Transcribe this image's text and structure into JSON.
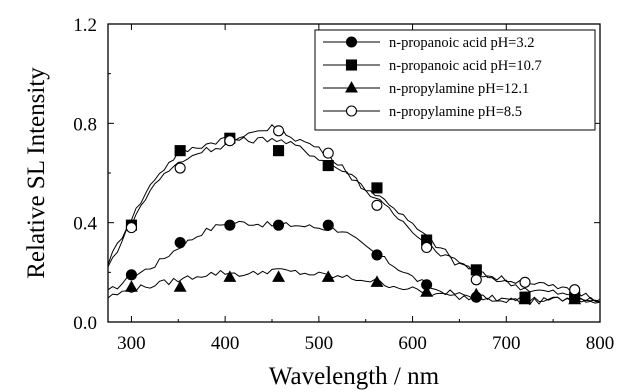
{
  "chart_data": {
    "type": "line",
    "xlabel": "Wavelength / nm",
    "ylabel": "Relative SL Intensity",
    "xlim": [
      275,
      800
    ],
    "ylim": [
      0.0,
      1.2
    ],
    "x_ticks": [
      300,
      400,
      500,
      600,
      700,
      800
    ],
    "y_ticks": [
      "0.0",
      "0.4",
      "0.8",
      "1.2"
    ],
    "grid": false,
    "legend_position": "top-right",
    "series": [
      {
        "name": "n-propanoic acid pH=3.2",
        "marker": "filled-circle",
        "curve": [
          [
            275,
            0.12
          ],
          [
            300,
            0.18
          ],
          [
            325,
            0.23
          ],
          [
            350,
            0.3
          ],
          [
            375,
            0.36
          ],
          [
            400,
            0.4
          ],
          [
            425,
            0.4
          ],
          [
            450,
            0.39
          ],
          [
            475,
            0.39
          ],
          [
            500,
            0.38
          ],
          [
            525,
            0.37
          ],
          [
            550,
            0.3
          ],
          [
            575,
            0.24
          ],
          [
            600,
            0.18
          ],
          [
            625,
            0.13
          ],
          [
            650,
            0.11
          ],
          [
            675,
            0.1
          ],
          [
            700,
            0.09
          ],
          [
            725,
            0.08
          ],
          [
            750,
            0.09
          ],
          [
            775,
            0.1
          ],
          [
            800,
            0.08
          ]
        ],
        "markers": [
          [
            300,
            0.19
          ],
          [
            352,
            0.32
          ],
          [
            405,
            0.39
          ],
          [
            457,
            0.39
          ],
          [
            510,
            0.39
          ],
          [
            562,
            0.27
          ],
          [
            615,
            0.15
          ],
          [
            668,
            0.1
          ],
          [
            720,
            0.1
          ],
          [
            773,
            0.1
          ]
        ]
      },
      {
        "name": "n-propanoic acid pH=10.7",
        "marker": "filled-square",
        "curve": [
          [
            275,
            0.24
          ],
          [
            300,
            0.42
          ],
          [
            325,
            0.58
          ],
          [
            350,
            0.68
          ],
          [
            375,
            0.71
          ],
          [
            400,
            0.74
          ],
          [
            425,
            0.73
          ],
          [
            450,
            0.74
          ],
          [
            475,
            0.71
          ],
          [
            500,
            0.66
          ],
          [
            525,
            0.61
          ],
          [
            550,
            0.54
          ],
          [
            575,
            0.48
          ],
          [
            600,
            0.39
          ],
          [
            625,
            0.31
          ],
          [
            650,
            0.24
          ],
          [
            675,
            0.19
          ],
          [
            700,
            0.16
          ],
          [
            725,
            0.13
          ],
          [
            750,
            0.12
          ],
          [
            775,
            0.1
          ],
          [
            800,
            0.08
          ]
        ],
        "markers": [
          [
            300,
            0.39
          ],
          [
            352,
            0.69
          ],
          [
            405,
            0.74
          ],
          [
            457,
            0.69
          ],
          [
            510,
            0.63
          ],
          [
            562,
            0.54
          ],
          [
            615,
            0.33
          ],
          [
            668,
            0.21
          ],
          [
            720,
            0.1
          ],
          [
            773,
            0.1
          ]
        ]
      },
      {
        "name": "n-propylamine pH=12.1",
        "marker": "filled-triangle",
        "curve": [
          [
            275,
            0.1
          ],
          [
            300,
            0.13
          ],
          [
            325,
            0.15
          ],
          [
            350,
            0.17
          ],
          [
            375,
            0.19
          ],
          [
            400,
            0.2
          ],
          [
            425,
            0.19
          ],
          [
            450,
            0.21
          ],
          [
            475,
            0.2
          ],
          [
            500,
            0.19
          ],
          [
            525,
            0.18
          ],
          [
            550,
            0.17
          ],
          [
            575,
            0.15
          ],
          [
            600,
            0.13
          ],
          [
            625,
            0.11
          ],
          [
            650,
            0.1
          ],
          [
            675,
            0.1
          ],
          [
            700,
            0.09
          ],
          [
            725,
            0.09
          ],
          [
            750,
            0.09
          ],
          [
            775,
            0.09
          ],
          [
            800,
            0.08
          ]
        ],
        "markers": [
          [
            300,
            0.14
          ],
          [
            352,
            0.14
          ],
          [
            405,
            0.18
          ],
          [
            457,
            0.18
          ],
          [
            510,
            0.18
          ],
          [
            562,
            0.16
          ],
          [
            615,
            0.12
          ],
          [
            668,
            0.11
          ],
          [
            720,
            0.09
          ],
          [
            773,
            0.09
          ]
        ]
      },
      {
        "name": "n-propylamine pH=8.5",
        "marker": "open-circle",
        "curve": [
          [
            275,
            0.22
          ],
          [
            300,
            0.4
          ],
          [
            325,
            0.56
          ],
          [
            350,
            0.64
          ],
          [
            375,
            0.69
          ],
          [
            400,
            0.71
          ],
          [
            425,
            0.75
          ],
          [
            450,
            0.79
          ],
          [
            475,
            0.74
          ],
          [
            500,
            0.7
          ],
          [
            525,
            0.63
          ],
          [
            550,
            0.53
          ],
          [
            575,
            0.45
          ],
          [
            600,
            0.37
          ],
          [
            625,
            0.29
          ],
          [
            650,
            0.23
          ],
          [
            675,
            0.19
          ],
          [
            700,
            0.17
          ],
          [
            725,
            0.16
          ],
          [
            750,
            0.14
          ],
          [
            775,
            0.12
          ],
          [
            800,
            0.09
          ]
        ],
        "markers": [
          [
            300,
            0.38
          ],
          [
            352,
            0.62
          ],
          [
            405,
            0.73
          ],
          [
            457,
            0.77
          ],
          [
            510,
            0.68
          ],
          [
            562,
            0.47
          ],
          [
            615,
            0.3
          ],
          [
            668,
            0.17
          ],
          [
            720,
            0.16
          ],
          [
            773,
            0.13
          ]
        ]
      }
    ]
  }
}
